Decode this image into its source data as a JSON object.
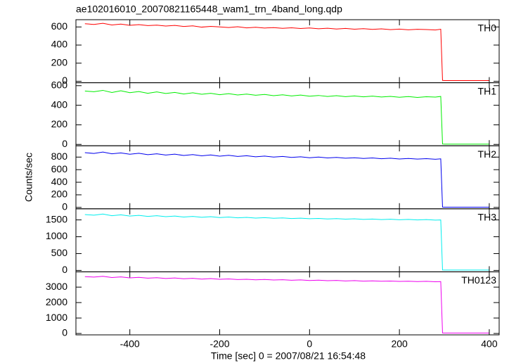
{
  "title": "ae102016010_20070821165448_wam1_trn_4band_long.qdp",
  "xlabel": "Time [sec] 0 = 2007/08/21 16:54:48",
  "ylabel": "Counts/sec",
  "x": [
    -500,
    -480,
    -460,
    -440,
    -420,
    -400,
    -380,
    -360,
    -340,
    -320,
    -300,
    -280,
    -260,
    -240,
    -220,
    -200,
    -180,
    -160,
    -140,
    -120,
    -100,
    -80,
    -60,
    -40,
    -20,
    0,
    20,
    40,
    60,
    80,
    100,
    120,
    140,
    160,
    180,
    200,
    220,
    240,
    260,
    280,
    292,
    296,
    300,
    350,
    400
  ],
  "xlim": [
    -520,
    422
  ],
  "xticks": [
    -400,
    -200,
    0,
    200,
    400
  ],
  "chart_data": [
    {
      "type": "line",
      "ylim": [
        -16,
        680
      ],
      "yticks": [
        0,
        200,
        400,
        600
      ],
      "series": [
        {
          "name": "TH0",
          "color": "#ff0000",
          "values": [
            635,
            628,
            640,
            622,
            631,
            618,
            626,
            615,
            620,
            610,
            617,
            605,
            612,
            598,
            606,
            600,
            594,
            602,
            590,
            597,
            588,
            593,
            585,
            591,
            583,
            589,
            580,
            586,
            577,
            584,
            575,
            581,
            573,
            579,
            570,
            576,
            568,
            574,
            571,
            566,
            575,
            10,
            8,
            8,
            8
          ]
        }
      ]
    },
    {
      "type": "line",
      "ylim": [
        -14,
        630
      ],
      "yticks": [
        0,
        200,
        400,
        600
      ],
      "series": [
        {
          "name": "TH1",
          "color": "#00ee00",
          "values": [
            545,
            538,
            552,
            530,
            548,
            528,
            540,
            522,
            536,
            520,
            531,
            515,
            527,
            512,
            522,
            508,
            518,
            505,
            514,
            502,
            510,
            498,
            507,
            495,
            504,
            492,
            500,
            490,
            498,
            488,
            495,
            486,
            493,
            484,
            491,
            482,
            489,
            480,
            487,
            483,
            490,
            4,
            3,
            3,
            3
          ]
        }
      ]
    },
    {
      "type": "line",
      "ylim": [
        -22,
        980
      ],
      "yticks": [
        0,
        200,
        400,
        600,
        800
      ],
      "series": [
        {
          "name": "TH2",
          "color": "#0000ee",
          "values": [
            870,
            858,
            880,
            852,
            866,
            845,
            860,
            838,
            852,
            832,
            846,
            826,
            840,
            820,
            834,
            815,
            828,
            810,
            822,
            805,
            816,
            800,
            810,
            795,
            805,
            790,
            800,
            786,
            795,
            782,
            790,
            778,
            786,
            774,
            782,
            770,
            778,
            768,
            775,
            765,
            772,
            5,
            4,
            4,
            4
          ]
        }
      ]
    },
    {
      "type": "line",
      "ylim": [
        -42,
        1830
      ],
      "yticks": [
        0,
        500,
        1000,
        1500
      ],
      "series": [
        {
          "name": "TH3",
          "color": "#00eeee",
          "values": [
            1660,
            1640,
            1675,
            1625,
            1650,
            1615,
            1635,
            1605,
            1625,
            1595,
            1615,
            1585,
            1605,
            1578,
            1595,
            1570,
            1585,
            1562,
            1575,
            1555,
            1568,
            1548,
            1560,
            1540,
            1552,
            1535,
            1545,
            1528,
            1538,
            1522,
            1532,
            1515,
            1526,
            1510,
            1520,
            1505,
            1515,
            1500,
            1510,
            1495,
            1500,
            12,
            10,
            10,
            10
          ]
        }
      ]
    },
    {
      "type": "line",
      "ylim": [
        -90,
        3990
      ],
      "yticks": [
        0,
        1000,
        2000,
        3000
      ],
      "series": [
        {
          "name": "TH0123",
          "color": "#ee00ee",
          "values": [
            3680,
            3650,
            3700,
            3620,
            3660,
            3600,
            3635,
            3580,
            3610,
            3560,
            3590,
            3540,
            3570,
            3520,
            3550,
            3505,
            3530,
            3490,
            3510,
            3475,
            3495,
            3460,
            3480,
            3445,
            3465,
            3430,
            3450,
            3415,
            3435,
            3400,
            3420,
            3390,
            3405,
            3380,
            3395,
            3370,
            3385,
            3360,
            3375,
            3350,
            3360,
            30,
            28,
            28,
            28
          ]
        }
      ]
    }
  ]
}
